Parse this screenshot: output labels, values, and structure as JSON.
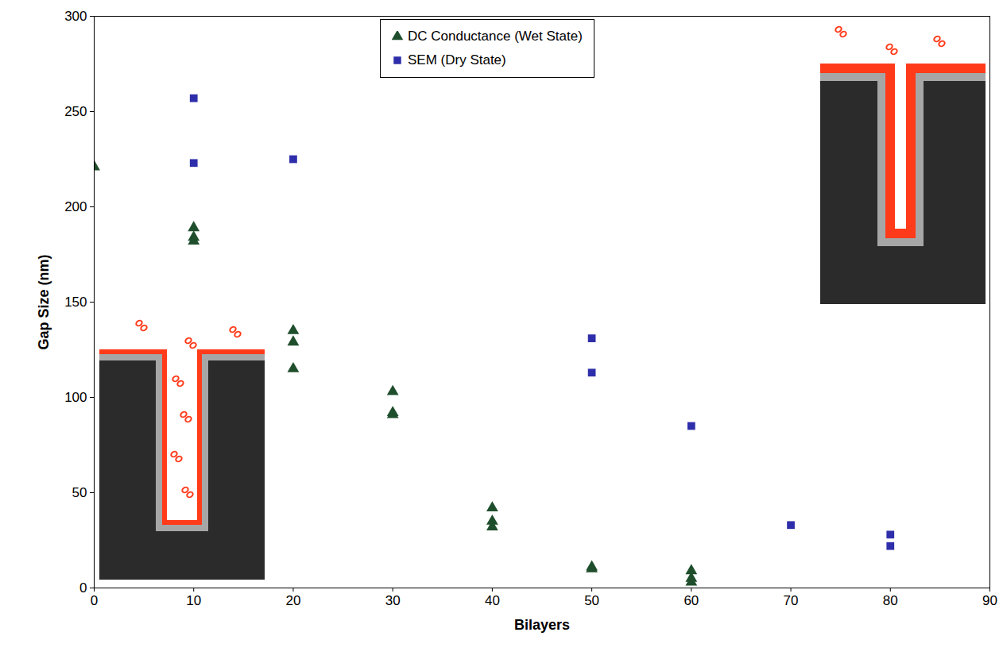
{
  "chart_data": {
    "type": "scatter",
    "x_label": "Bilayers",
    "y_label": "Gap Size (nm)",
    "xlim": [
      0,
      90
    ],
    "xticks": [
      0,
      10,
      20,
      30,
      40,
      50,
      60,
      70,
      80,
      90
    ],
    "ylim": [
      0,
      300
    ],
    "yticks": [
      0,
      50,
      100,
      150,
      200,
      250,
      300
    ],
    "grid": false,
    "legend": "top",
    "series": [
      {
        "name": "DC Conductance (Wet State)",
        "color": "#1f4e2c",
        "marker": "triangle",
        "x": [
          0,
          10,
          10,
          10,
          20,
          20,
          20,
          30,
          30,
          30,
          40,
          40,
          40,
          50,
          50,
          60,
          60,
          60
        ],
        "values": [
          221,
          189,
          184,
          182,
          135,
          129,
          115,
          103,
          92,
          91,
          42,
          35,
          32,
          11,
          10,
          9,
          5,
          3
        ]
      },
      {
        "name": "SEM (Dry State)",
        "color": "#2e2eab",
        "marker": "square",
        "x": [
          10,
          10,
          20,
          50,
          50,
          60,
          70,
          80,
          80
        ],
        "values": [
          257,
          223,
          225,
          131,
          113,
          85,
          33,
          28,
          22
        ]
      }
    ]
  }
}
